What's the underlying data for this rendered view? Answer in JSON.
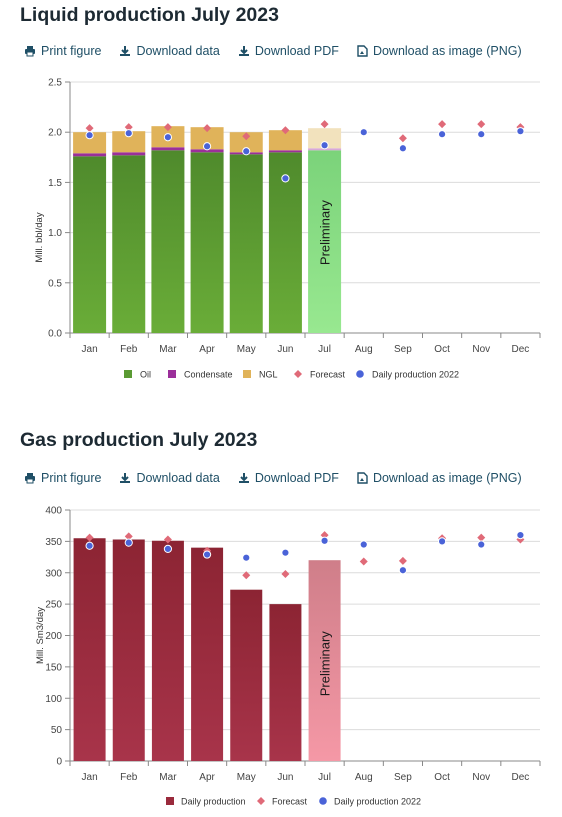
{
  "toolbar": {
    "print": "Print figure",
    "download_data": "Download data",
    "download_pdf": "Download PDF",
    "download_image": "Download as image (PNG)"
  },
  "liquid": {
    "title": "Liquid production July 2023"
  },
  "gas": {
    "title": "Gas production July 2023"
  },
  "colors": {
    "oil": "#5a9a33",
    "condensate": "#9b2f9a",
    "ngl": "#e0b35a",
    "forecast": "#e06a78",
    "daily2022": "#4a63d8",
    "gas": "#9a2a3c",
    "gas_prelim": "#f08c9a",
    "oil_prelim": "#8fe08a"
  },
  "chart_data": [
    {
      "type": "bar",
      "stacked": true,
      "categories": [
        "Jan",
        "Feb",
        "Mar",
        "Apr",
        "May",
        "Jun",
        "Jul",
        "Aug",
        "Sep",
        "Oct",
        "Nov",
        "Dec"
      ],
      "ylabel": "Mill. bbl/day",
      "ylim": [
        0,
        2.5
      ],
      "yticks": [
        "0.0",
        "0.5",
        "1.0",
        "1.5",
        "2.0",
        "2.5"
      ],
      "grid": true,
      "legend_position": "bottom",
      "bar_annotation": "Preliminary",
      "series": [
        {
          "name": "Oil",
          "kind": "bar",
          "values": [
            1.76,
            1.77,
            1.82,
            1.8,
            1.78,
            1.8,
            1.82,
            null,
            null,
            null,
            null,
            null
          ]
        },
        {
          "name": "Condensate",
          "kind": "bar",
          "values": [
            0.03,
            0.03,
            0.03,
            0.03,
            0.02,
            0.02,
            0.02,
            null,
            null,
            null,
            null,
            null
          ]
        },
        {
          "name": "NGL",
          "kind": "bar",
          "values": [
            0.21,
            0.21,
            0.21,
            0.22,
            0.2,
            0.2,
            0.2,
            null,
            null,
            null,
            null,
            null
          ]
        },
        {
          "name": "Forecast",
          "kind": "diamond",
          "values": [
            2.04,
            2.05,
            2.05,
            2.04,
            1.96,
            2.02,
            2.08,
            2.0,
            1.94,
            2.08,
            2.08,
            2.05
          ]
        },
        {
          "name": "Daily production 2022",
          "kind": "dot",
          "values": [
            1.97,
            1.99,
            1.95,
            1.86,
            1.81,
            1.54,
            1.87,
            2.0,
            1.84,
            1.98,
            1.98,
            2.01
          ]
        }
      ]
    },
    {
      "type": "bar",
      "categories": [
        "Jan",
        "Feb",
        "Mar",
        "Apr",
        "May",
        "Jun",
        "Jul",
        "Aug",
        "Sep",
        "Oct",
        "Nov",
        "Dec"
      ],
      "ylabel": "Mill. Sm3/day",
      "ylim": [
        0,
        400
      ],
      "yticks": [
        "0",
        "50",
        "100",
        "150",
        "200",
        "250",
        "300",
        "350",
        "400"
      ],
      "grid": true,
      "legend_position": "bottom",
      "bar_annotation": "Preliminary",
      "series": [
        {
          "name": "Daily production",
          "kind": "bar",
          "values": [
            355,
            353,
            351,
            340,
            273,
            250,
            320,
            null,
            null,
            null,
            null,
            null
          ]
        },
        {
          "name": "Forecast",
          "kind": "diamond",
          "values": [
            356,
            358,
            353,
            335,
            296,
            298,
            360,
            318,
            319,
            355,
            356,
            353
          ]
        },
        {
          "name": "Daily production 2022",
          "kind": "dot",
          "values": [
            343,
            348,
            338,
            329,
            324,
            332,
            351,
            345,
            304,
            350,
            345,
            360
          ]
        }
      ]
    }
  ]
}
